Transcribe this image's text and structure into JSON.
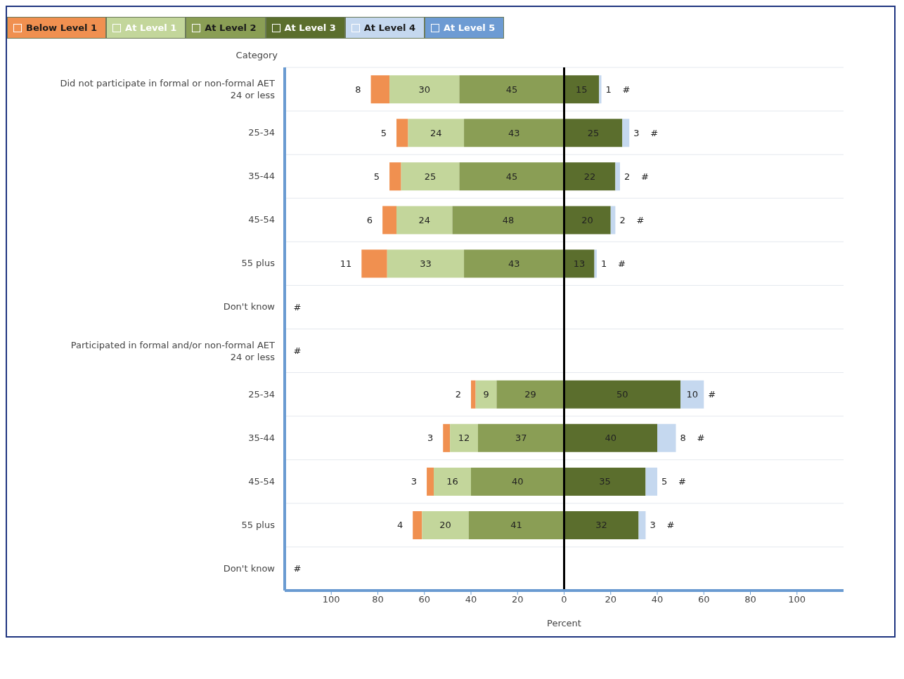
{
  "chart_data": {
    "type": "bar",
    "orientation": "horizontal",
    "xlabel": "Percent",
    "ylabel": "Category",
    "categories": [
      "Did not participate in formal or non-formal AET\n24 or less",
      "25-34",
      "35-44",
      "45-54",
      "55 plus",
      "Don't know",
      "Participated in formal and/or non-formal AET\n24 or less",
      "25-34",
      "35-44",
      "45-54",
      "55 plus",
      "Don't know"
    ],
    "series": [
      {
        "name": "Below Level 1",
        "color": "#f09050",
        "values": [
          8,
          5,
          5,
          6,
          11,
          null,
          null,
          2,
          3,
          3,
          4,
          null
        ],
        "base": [
          -83,
          -72,
          -75,
          -78,
          -87,
          null,
          null,
          -40,
          -52,
          -59,
          -65,
          null
        ],
        "value_labels": [
          "8",
          "5",
          "5",
          "6",
          "11",
          "#",
          "#",
          "2",
          "3",
          "3",
          "4",
          "#"
        ]
      },
      {
        "name": "At Level 1",
        "color": "#c3d69b",
        "values": [
          30,
          24,
          25,
          24,
          33,
          null,
          null,
          9,
          12,
          16,
          20,
          null
        ],
        "base": [
          -75,
          -67,
          -70,
          -72,
          -76,
          null,
          null,
          -38,
          -49,
          -56,
          -61,
          null
        ],
        "value_labels": [
          "30",
          "24",
          "25",
          "24",
          "33",
          null,
          null,
          "9",
          "12",
          "16",
          "20",
          null
        ]
      },
      {
        "name": "At Level 2",
        "color": "#8a9e55",
        "values": [
          45,
          43,
          45,
          48,
          43,
          null,
          null,
          29,
          37,
          40,
          41,
          null
        ],
        "base": [
          -45,
          -43,
          -45,
          -48,
          -43,
          null,
          null,
          -29,
          -37,
          -40,
          -41,
          null
        ],
        "value_labels": [
          "45",
          "43",
          "45",
          "48",
          "43",
          null,
          null,
          "29",
          "37",
          "40",
          "41",
          null
        ]
      },
      {
        "name": "At Level 3",
        "color": "#5b6e2d",
        "values": [
          15,
          25,
          22,
          20,
          13,
          null,
          null,
          50,
          40,
          35,
          32,
          null
        ],
        "base": [
          0,
          0,
          0,
          0,
          0,
          null,
          null,
          0,
          0,
          0,
          0,
          null
        ],
        "value_labels": [
          "15",
          "25",
          "22",
          "20",
          "13",
          null,
          null,
          "50",
          "40",
          "35",
          "32",
          null
        ]
      },
      {
        "name": "At Level 4",
        "color": "#c5d8ef",
        "values": [
          1,
          3,
          2,
          2,
          1,
          null,
          null,
          10,
          8,
          5,
          3,
          null
        ],
        "base": [
          15,
          25,
          22,
          20,
          13,
          null,
          null,
          50,
          40,
          35,
          32,
          null
        ],
        "value_labels": [
          "1",
          "3",
          "2",
          "2",
          "1",
          null,
          null,
          "10",
          "8",
          "5",
          "3",
          null
        ]
      },
      {
        "name": "At Level 5",
        "color": "#6d9bd3",
        "values": [
          null,
          null,
          null,
          null,
          null,
          null,
          null,
          null,
          null,
          null,
          null,
          null
        ],
        "value_labels": [
          "#",
          "#",
          "#",
          "#",
          "#",
          null,
          null,
          "#",
          "#",
          "#",
          "#",
          null
        ]
      }
    ],
    "xlim": [
      -120,
      120
    ],
    "xticks": [
      {
        "value": -100,
        "label": "100"
      },
      {
        "value": -80,
        "label": "80"
      },
      {
        "value": -60,
        "label": "60"
      },
      {
        "value": -40,
        "label": "40"
      },
      {
        "value": -20,
        "label": "20"
      },
      0,
      20,
      40,
      60,
      80,
      100
    ],
    "ref_lines": [
      {
        "axis": "x",
        "value": 0,
        "color": "#000000"
      }
    ],
    "grid": "y",
    "legend": "top left"
  }
}
